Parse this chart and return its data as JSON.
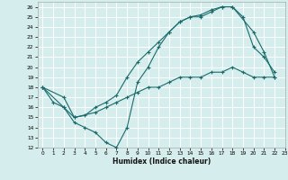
{
  "title": "",
  "xlabel": "Humidex (Indice chaleur)",
  "bg_color": "#d6eded",
  "grid_color": "#ffffff",
  "line_color": "#1a6b6b",
  "xlim": [
    -0.5,
    23
  ],
  "ylim": [
    12,
    26.5
  ],
  "xticks": [
    0,
    1,
    2,
    3,
    4,
    5,
    6,
    7,
    8,
    9,
    10,
    11,
    12,
    13,
    14,
    15,
    16,
    17,
    18,
    19,
    20,
    21,
    22,
    23
  ],
  "yticks": [
    12,
    13,
    14,
    15,
    16,
    17,
    18,
    19,
    20,
    21,
    22,
    23,
    24,
    25,
    26
  ],
  "line1_x": [
    0,
    1,
    2,
    3,
    4,
    5,
    6,
    7,
    8,
    9,
    10,
    11,
    12,
    13,
    14,
    15,
    16,
    17,
    18,
    19,
    20,
    21,
    22
  ],
  "line1_y": [
    18,
    16.5,
    16.0,
    14.5,
    14.0,
    13.5,
    12.5,
    12.0,
    14.0,
    18.5,
    20.0,
    22.0,
    23.5,
    24.5,
    25.0,
    25.0,
    25.5,
    26.0,
    26.0,
    25.0,
    22.0,
    21.0,
    19.5
  ],
  "line2_x": [
    0,
    2,
    3,
    4,
    5,
    6,
    7,
    8,
    9,
    10,
    11,
    12,
    13,
    14,
    15,
    16,
    17,
    18,
    20,
    21,
    22
  ],
  "line2_y": [
    18,
    17.0,
    15.0,
    15.2,
    16.0,
    16.5,
    17.2,
    19.0,
    20.5,
    21.5,
    22.5,
    23.5,
    24.5,
    25.0,
    25.2,
    25.7,
    26.0,
    26.0,
    23.5,
    21.5,
    19.0
  ],
  "line3_x": [
    0,
    2,
    3,
    5,
    6,
    7,
    8,
    9,
    10,
    11,
    12,
    13,
    14,
    15,
    16,
    17,
    18,
    19,
    20,
    21,
    22
  ],
  "line3_y": [
    18,
    16.0,
    15.0,
    15.5,
    16.0,
    16.5,
    17.0,
    17.5,
    18.0,
    18.0,
    18.5,
    19.0,
    19.0,
    19.0,
    19.5,
    19.5,
    20.0,
    19.5,
    19.0,
    19.0,
    19.0
  ]
}
